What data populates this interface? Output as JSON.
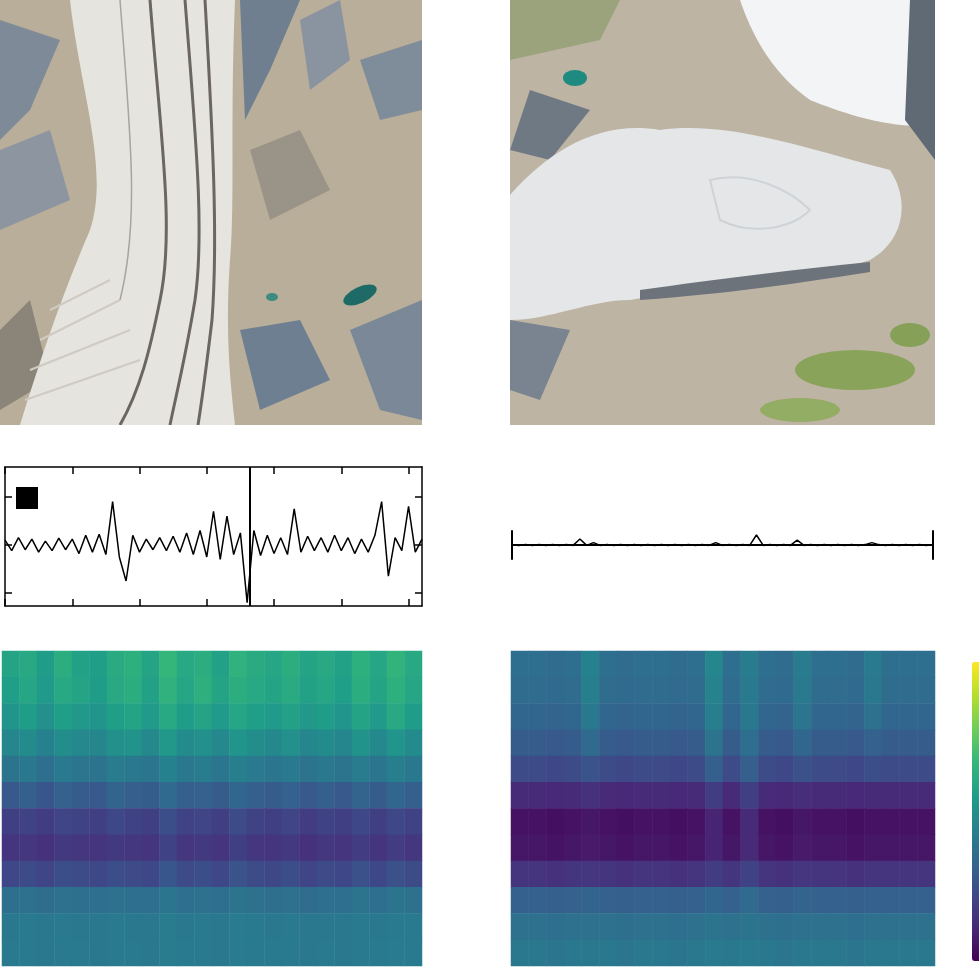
{
  "chart_data": [
    {
      "type": "line",
      "color": "#000000",
      "grid": false,
      "tick_labels": false,
      "xlim": [
        0,
        6.2
      ],
      "xticks": [
        0,
        1,
        2,
        3,
        4,
        5,
        6
      ],
      "ylim": [
        -1.27,
        1.62
      ],
      "yticks": [
        -1,
        0,
        1
      ],
      "event_x": 3.64,
      "x": [
        0,
        0.1,
        0.2,
        0.3,
        0.4,
        0.5,
        0.6,
        0.7,
        0.8,
        0.9,
        1.0,
        1.1,
        1.2,
        1.3,
        1.4,
        1.5,
        1.6,
        1.7,
        1.8,
        1.9,
        2.0,
        2.1,
        2.2,
        2.3,
        2.4,
        2.5,
        2.6,
        2.7,
        2.8,
        2.9,
        3.0,
        3.1,
        3.2,
        3.3,
        3.4,
        3.5,
        3.6,
        3.7,
        3.8,
        3.9,
        4.0,
        4.1,
        4.2,
        4.3,
        4.4,
        4.5,
        4.6,
        4.7,
        4.8,
        4.9,
        5.0,
        5.1,
        5.2,
        5.3,
        5.4,
        5.5,
        5.6,
        5.7,
        5.8,
        5.9,
        6.0,
        6.1,
        6.2
      ],
      "values": [
        0.1,
        -0.12,
        0.15,
        -0.1,
        0.12,
        -0.15,
        0.08,
        -0.12,
        0.14,
        -0.1,
        0.12,
        -0.18,
        0.2,
        -0.15,
        0.22,
        -0.2,
        0.9,
        -0.25,
        -0.75,
        0.2,
        -0.15,
        0.12,
        -0.1,
        0.15,
        -0.12,
        0.18,
        -0.15,
        0.25,
        -0.2,
        0.3,
        -0.25,
        0.7,
        -0.3,
        0.6,
        -0.2,
        0.25,
        -1.2,
        0.3,
        -0.22,
        0.2,
        -0.18,
        0.15,
        -0.2,
        0.75,
        -0.15,
        0.18,
        -0.12,
        0.15,
        -0.15,
        0.2,
        -0.12,
        0.15,
        -0.18,
        0.12,
        -0.15,
        0.2,
        0.9,
        -0.65,
        0.15,
        -0.12,
        0.8,
        -0.15,
        0.12
      ]
    },
    {
      "type": "line",
      "color": "#000000",
      "grid": false,
      "tick_labels": false,
      "xlim": [
        0,
        6.2
      ],
      "xticks": [
        0,
        6.2
      ],
      "ylim": [
        -0.35,
        0.35
      ],
      "yticks": [],
      "x": [
        0,
        0.1,
        0.2,
        0.3,
        0.4,
        0.5,
        0.6,
        0.7,
        0.8,
        0.9,
        1.0,
        1.1,
        1.2,
        1.3,
        1.4,
        1.5,
        1.6,
        1.7,
        1.8,
        1.9,
        2.0,
        2.1,
        2.2,
        2.3,
        2.4,
        2.5,
        2.6,
        2.7,
        2.8,
        2.9,
        3.0,
        3.1,
        3.2,
        3.3,
        3.4,
        3.5,
        3.6,
        3.7,
        3.8,
        3.9,
        4.0,
        4.1,
        4.2,
        4.3,
        4.4,
        4.5,
        4.6,
        4.7,
        4.8,
        4.9,
        5.0,
        5.1,
        5.2,
        5.3,
        5.4,
        5.5,
        5.6,
        5.7,
        5.8,
        5.9,
        6.0,
        6.1,
        6.2
      ],
      "values": [
        0.01,
        -0.01,
        0.01,
        -0.01,
        0.01,
        -0.01,
        0.01,
        -0.01,
        0.01,
        -0.01,
        0.15,
        -0.01,
        0.06,
        -0.01,
        0.01,
        -0.01,
        0.01,
        -0.01,
        0.01,
        -0.01,
        0.01,
        -0.01,
        0.01,
        -0.01,
        0.01,
        -0.01,
        0.01,
        -0.01,
        0.01,
        -0.01,
        0.06,
        -0.01,
        0.01,
        -0.01,
        0.01,
        -0.01,
        0.25,
        -0.01,
        0.01,
        -0.01,
        0.01,
        -0.01,
        0.12,
        -0.01,
        0.01,
        -0.01,
        0.01,
        -0.01,
        0.01,
        -0.01,
        0.01,
        -0.01,
        0.01,
        0.06,
        0.01,
        -0.01,
        0.01,
        -0.01,
        0.01,
        -0.01,
        0.01,
        -0.01,
        0.01
      ]
    },
    {
      "type": "heatmap",
      "color": "viridis",
      "tick_labels": false,
      "color_range": [
        0,
        1
      ],
      "cells": [
        [
          0.58,
          0.6,
          0.55,
          0.62,
          0.57,
          0.56,
          0.61,
          0.63,
          0.58,
          0.66,
          0.6,
          0.62,
          0.57,
          0.64,
          0.61,
          0.59,
          0.62,
          0.58,
          0.6,
          0.57,
          0.63,
          0.59,
          0.65,
          0.6
        ],
        [
          0.56,
          0.59,
          0.54,
          0.6,
          0.58,
          0.55,
          0.6,
          0.62,
          0.57,
          0.64,
          0.59,
          0.63,
          0.58,
          0.62,
          0.6,
          0.58,
          0.61,
          0.57,
          0.59,
          0.56,
          0.62,
          0.58,
          0.63,
          0.59
        ],
        [
          0.52,
          0.55,
          0.5,
          0.56,
          0.53,
          0.52,
          0.56,
          0.58,
          0.54,
          0.6,
          0.55,
          0.58,
          0.54,
          0.59,
          0.56,
          0.54,
          0.57,
          0.53,
          0.55,
          0.52,
          0.58,
          0.54,
          0.6,
          0.55
        ],
        [
          0.46,
          0.48,
          0.44,
          0.49,
          0.47,
          0.46,
          0.5,
          0.51,
          0.47,
          0.53,
          0.48,
          0.5,
          0.47,
          0.52,
          0.49,
          0.47,
          0.5,
          0.46,
          0.48,
          0.46,
          0.51,
          0.47,
          0.52,
          0.48
        ],
        [
          0.38,
          0.4,
          0.36,
          0.41,
          0.39,
          0.38,
          0.42,
          0.4,
          0.39,
          0.44,
          0.4,
          0.42,
          0.39,
          0.43,
          0.41,
          0.39,
          0.41,
          0.38,
          0.4,
          0.38,
          0.42,
          0.39,
          0.43,
          0.4
        ],
        [
          0.28,
          0.3,
          0.27,
          0.31,
          0.29,
          0.28,
          0.32,
          0.3,
          0.29,
          0.34,
          0.3,
          0.31,
          0.29,
          0.33,
          0.3,
          0.29,
          0.31,
          0.28,
          0.3,
          0.28,
          0.32,
          0.29,
          0.33,
          0.3
        ],
        [
          0.19,
          0.2,
          0.18,
          0.21,
          0.2,
          0.19,
          0.22,
          0.2,
          0.19,
          0.24,
          0.2,
          0.21,
          0.19,
          0.23,
          0.2,
          0.19,
          0.21,
          0.18,
          0.2,
          0.19,
          0.22,
          0.19,
          0.22,
          0.2
        ],
        [
          0.15,
          0.16,
          0.14,
          0.17,
          0.16,
          0.15,
          0.17,
          0.16,
          0.15,
          0.2,
          0.16,
          0.17,
          0.15,
          0.19,
          0.16,
          0.15,
          0.17,
          0.14,
          0.16,
          0.15,
          0.18,
          0.15,
          0.18,
          0.16
        ],
        [
          0.22,
          0.23,
          0.21,
          0.24,
          0.23,
          0.22,
          0.24,
          0.23,
          0.22,
          0.27,
          0.23,
          0.24,
          0.22,
          0.26,
          0.23,
          0.22,
          0.24,
          0.21,
          0.23,
          0.22,
          0.25,
          0.22,
          0.25,
          0.23
        ],
        [
          0.36,
          0.37,
          0.35,
          0.37,
          0.36,
          0.36,
          0.37,
          0.36,
          0.36,
          0.39,
          0.36,
          0.37,
          0.36,
          0.38,
          0.37,
          0.36,
          0.37,
          0.35,
          0.36,
          0.36,
          0.38,
          0.36,
          0.38,
          0.37
        ],
        [
          0.4,
          0.41,
          0.4,
          0.41,
          0.4,
          0.4,
          0.41,
          0.4,
          0.4,
          0.42,
          0.4,
          0.41,
          0.4,
          0.42,
          0.41,
          0.4,
          0.41,
          0.4,
          0.4,
          0.4,
          0.41,
          0.4,
          0.41,
          0.41
        ],
        [
          0.41,
          0.41,
          0.4,
          0.41,
          0.41,
          0.4,
          0.41,
          0.41,
          0.4,
          0.42,
          0.41,
          0.41,
          0.4,
          0.42,
          0.41,
          0.41,
          0.41,
          0.4,
          0.41,
          0.4,
          0.41,
          0.41,
          0.42,
          0.41
        ]
      ]
    },
    {
      "type": "heatmap",
      "color": "viridis",
      "tick_labels": false,
      "color_range": [
        0,
        1
      ],
      "cells": [
        [
          0.36,
          0.36,
          0.35,
          0.36,
          0.44,
          0.36,
          0.35,
          0.36,
          0.36,
          0.35,
          0.36,
          0.46,
          0.36,
          0.42,
          0.36,
          0.35,
          0.42,
          0.36,
          0.36,
          0.35,
          0.41,
          0.36,
          0.36,
          0.36
        ],
        [
          0.35,
          0.35,
          0.34,
          0.35,
          0.43,
          0.35,
          0.34,
          0.35,
          0.35,
          0.34,
          0.35,
          0.45,
          0.35,
          0.41,
          0.35,
          0.34,
          0.41,
          0.35,
          0.35,
          0.34,
          0.4,
          0.35,
          0.35,
          0.35
        ],
        [
          0.33,
          0.33,
          0.32,
          0.33,
          0.4,
          0.33,
          0.32,
          0.33,
          0.33,
          0.32,
          0.33,
          0.43,
          0.33,
          0.4,
          0.33,
          0.32,
          0.39,
          0.33,
          0.33,
          0.32,
          0.37,
          0.33,
          0.33,
          0.33
        ],
        [
          0.29,
          0.29,
          0.28,
          0.29,
          0.34,
          0.29,
          0.28,
          0.29,
          0.29,
          0.28,
          0.29,
          0.38,
          0.29,
          0.36,
          0.29,
          0.28,
          0.33,
          0.29,
          0.29,
          0.28,
          0.31,
          0.29,
          0.29,
          0.29
        ],
        [
          0.23,
          0.23,
          0.22,
          0.23,
          0.26,
          0.23,
          0.22,
          0.23,
          0.23,
          0.22,
          0.23,
          0.3,
          0.23,
          0.3,
          0.23,
          0.22,
          0.25,
          0.23,
          0.23,
          0.22,
          0.24,
          0.23,
          0.23,
          0.23
        ],
        [
          0.12,
          0.12,
          0.11,
          0.12,
          0.14,
          0.12,
          0.11,
          0.12,
          0.12,
          0.11,
          0.12,
          0.18,
          0.12,
          0.19,
          0.12,
          0.11,
          0.13,
          0.12,
          0.12,
          0.11,
          0.12,
          0.12,
          0.12,
          0.12
        ],
        [
          0.05,
          0.05,
          0.04,
          0.05,
          0.06,
          0.05,
          0.04,
          0.05,
          0.05,
          0.04,
          0.05,
          0.1,
          0.05,
          0.12,
          0.05,
          0.04,
          0.06,
          0.05,
          0.05,
          0.04,
          0.05,
          0.05,
          0.05,
          0.05
        ],
        [
          0.06,
          0.06,
          0.05,
          0.06,
          0.07,
          0.06,
          0.05,
          0.06,
          0.06,
          0.05,
          0.06,
          0.1,
          0.06,
          0.12,
          0.06,
          0.05,
          0.07,
          0.06,
          0.06,
          0.05,
          0.06,
          0.06,
          0.06,
          0.06
        ],
        [
          0.15,
          0.15,
          0.14,
          0.15,
          0.16,
          0.15,
          0.14,
          0.15,
          0.15,
          0.14,
          0.15,
          0.18,
          0.15,
          0.2,
          0.15,
          0.14,
          0.16,
          0.15,
          0.15,
          0.14,
          0.15,
          0.15,
          0.15,
          0.15
        ],
        [
          0.31,
          0.31,
          0.3,
          0.31,
          0.32,
          0.31,
          0.3,
          0.31,
          0.31,
          0.3,
          0.31,
          0.33,
          0.31,
          0.34,
          0.31,
          0.3,
          0.32,
          0.31,
          0.31,
          0.3,
          0.31,
          0.31,
          0.31,
          0.31
        ],
        [
          0.37,
          0.37,
          0.36,
          0.37,
          0.37,
          0.37,
          0.36,
          0.37,
          0.37,
          0.36,
          0.37,
          0.38,
          0.37,
          0.38,
          0.37,
          0.36,
          0.37,
          0.37,
          0.37,
          0.36,
          0.37,
          0.37,
          0.37,
          0.37
        ],
        [
          0.4,
          0.4,
          0.39,
          0.4,
          0.4,
          0.4,
          0.39,
          0.4,
          0.4,
          0.39,
          0.4,
          0.41,
          0.4,
          0.41,
          0.4,
          0.39,
          0.4,
          0.4,
          0.4,
          0.39,
          0.4,
          0.4,
          0.4,
          0.4
        ]
      ]
    }
  ]
}
